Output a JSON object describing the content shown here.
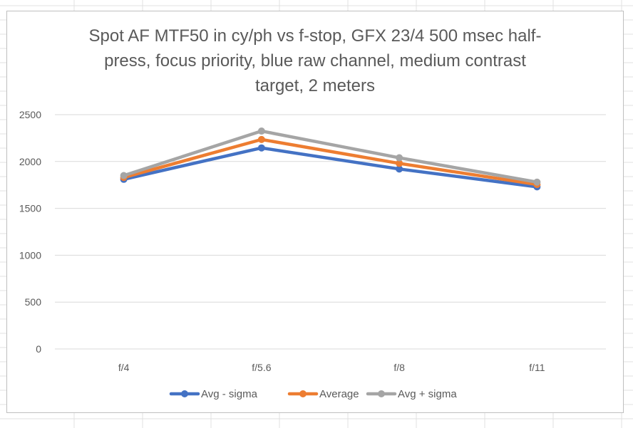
{
  "chart_data": {
    "type": "line",
    "title": "Spot AF MTF50 in cy/ph vs f-stop, GFX 23/4 500 msec half-\npress, focus priority, blue raw channel, medium contrast\ntarget, 2 meters",
    "xlabel": "",
    "ylabel": "",
    "categories": [
      "f/4",
      "f/5.6",
      "f/8",
      "f/11"
    ],
    "ylim": [
      0,
      2500
    ],
    "yticks": [
      0,
      500,
      1000,
      1500,
      2000,
      2500
    ],
    "grid": true,
    "legend_position": "bottom",
    "series": [
      {
        "name": "Avg - sigma",
        "color": "#4472c4",
        "values": [
          1810,
          2145,
          1920,
          1730
        ]
      },
      {
        "name": "Average",
        "color": "#ed7d31",
        "values": [
          1830,
          2235,
          1980,
          1755
        ]
      },
      {
        "name": "Avg + sigma",
        "color": "#a5a5a5",
        "values": [
          1850,
          2325,
          2040,
          1780
        ]
      }
    ]
  }
}
